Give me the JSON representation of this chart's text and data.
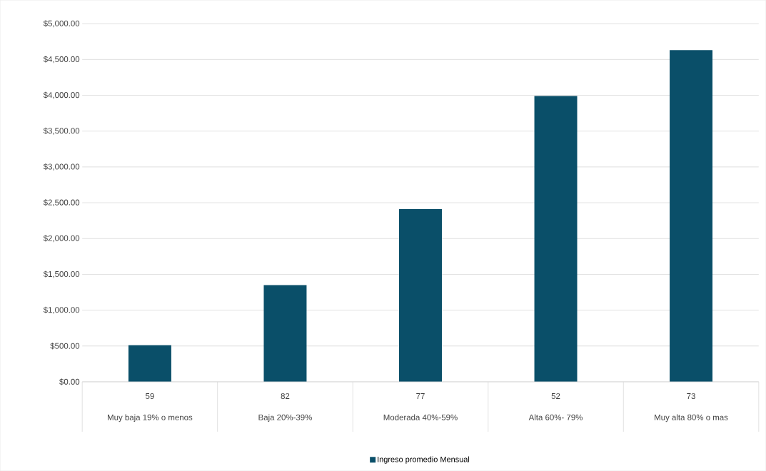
{
  "chart_data": {
    "type": "bar",
    "categories": [
      "Muy baja 19% o menos",
      "Baja 20%-39%",
      "Moderada 40%-59%",
      "Alta 60%- 79%",
      "Muy alta  80% o mas"
    ],
    "series": [
      {
        "name": "Ingreso promedio Mensual",
        "color": "#0a4f69",
        "values": [
          510,
          1350,
          2410,
          3990,
          4630
        ]
      }
    ],
    "annotations": [
      "59",
      "82",
      "77",
      "52",
      "73"
    ],
    "ylim": [
      0,
      5000
    ],
    "yticks": [
      {
        "value": 0,
        "label": "$0.00"
      },
      {
        "value": 500,
        "label": "$500.00"
      },
      {
        "value": 1000,
        "label": "$1,000.00"
      },
      {
        "value": 1500,
        "label": "$1,500.00"
      },
      {
        "value": 2000,
        "label": "$2,000.00"
      },
      {
        "value": 2500,
        "label": "$2,500.00"
      },
      {
        "value": 3000,
        "label": "$3,000.00"
      },
      {
        "value": 3500,
        "label": "$3,500.00"
      },
      {
        "value": 4000,
        "label": "$4,000.00"
      },
      {
        "value": 4500,
        "label": "$4,500.00"
      },
      {
        "value": 5000,
        "label": "$5,000.00"
      }
    ],
    "grid": "y",
    "legend": "bottom"
  }
}
